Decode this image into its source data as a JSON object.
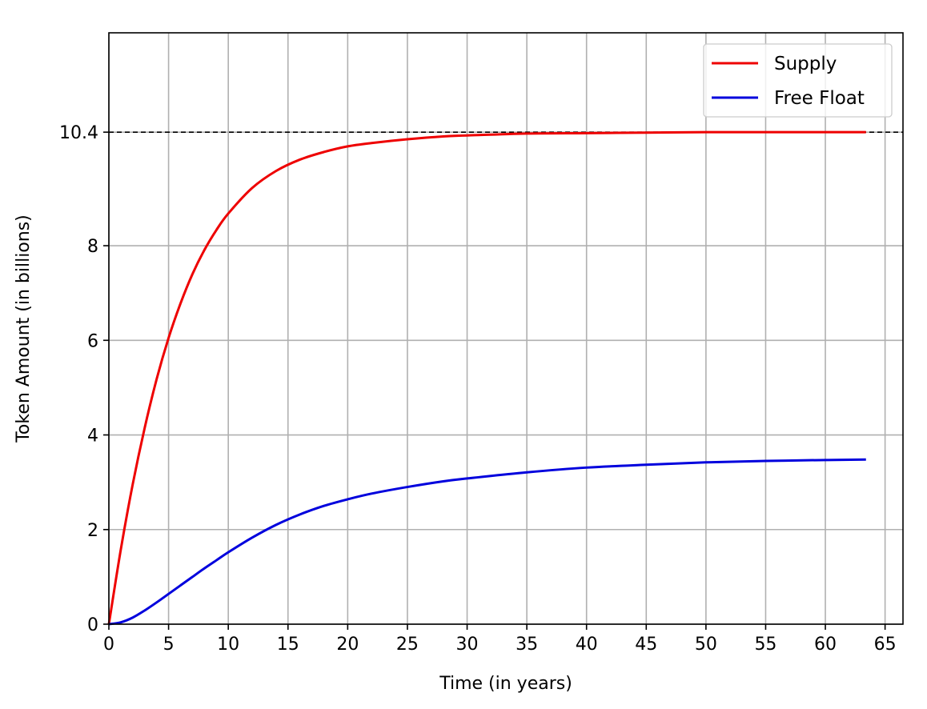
{
  "chart_data": {
    "type": "line",
    "title": "",
    "xlabel": "Time (in years)",
    "ylabel": "Token Amount (in billions)",
    "xlim": [
      0,
      66.5
    ],
    "ylim": [
      0,
      12.5
    ],
    "xticks": [
      0,
      5,
      10,
      15,
      20,
      25,
      30,
      35,
      40,
      45,
      50,
      55,
      60,
      65
    ],
    "yticks": [
      0,
      2,
      4,
      6,
      8,
      10.4
    ],
    "ytick_labels": [
      "0",
      "2",
      "4",
      "6",
      "8",
      "10.4"
    ],
    "grid": true,
    "legend_position": "top-right",
    "reference_line": {
      "y": 10.4,
      "style": "dashed",
      "color": "#000000"
    },
    "series": [
      {
        "name": "Supply",
        "color": "#ee0000",
        "x": [
          0,
          1,
          2,
          3,
          4,
          5,
          6,
          7,
          8,
          9,
          10,
          12,
          14,
          16,
          18,
          20,
          22,
          25,
          28,
          30,
          35,
          40,
          45,
          50,
          55,
          60,
          63.4
        ],
        "y": [
          0,
          1.58,
          2.96,
          4.15,
          5.18,
          6.05,
          6.78,
          7.4,
          7.91,
          8.33,
          8.68,
          9.22,
          9.58,
          9.82,
          9.98,
          10.1,
          10.17,
          10.25,
          10.31,
          10.33,
          10.37,
          10.38,
          10.39,
          10.4,
          10.4,
          10.4,
          10.4
        ]
      },
      {
        "name": "Free Float",
        "color": "#0000dd",
        "x": [
          0,
          1,
          2,
          3,
          4,
          5,
          6,
          7,
          8,
          9,
          10,
          12,
          14,
          16,
          18,
          20,
          22,
          25,
          28,
          30,
          35,
          40,
          45,
          50,
          55,
          60,
          63.4
        ],
        "y": [
          0,
          0.04,
          0.14,
          0.29,
          0.46,
          0.64,
          0.82,
          1.0,
          1.18,
          1.35,
          1.52,
          1.83,
          2.1,
          2.32,
          2.5,
          2.64,
          2.76,
          2.9,
          3.02,
          3.08,
          3.21,
          3.31,
          3.37,
          3.42,
          3.45,
          3.47,
          3.48
        ]
      }
    ]
  }
}
